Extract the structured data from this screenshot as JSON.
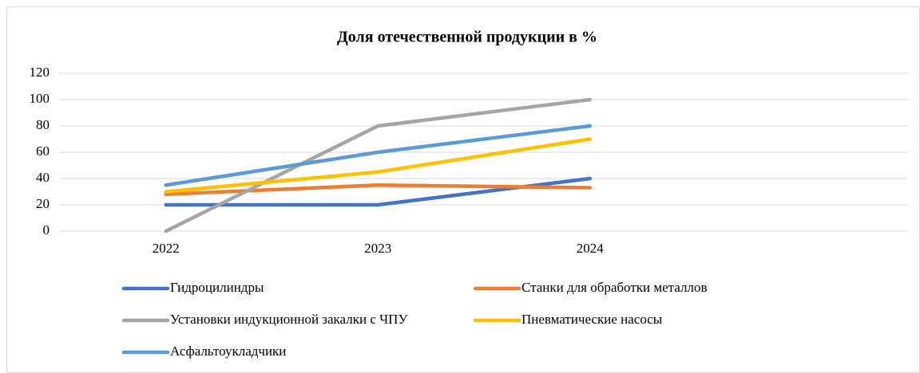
{
  "chart_data": {
    "type": "line",
    "title": "Доля отечественной продукции в %",
    "categories": [
      "2022",
      "2023",
      "2024",
      null
    ],
    "series": [
      {
        "name": "Гидроцилиндры",
        "color": "#4472c4",
        "values": [
          20,
          20,
          40,
          null
        ]
      },
      {
        "name": "Станки для обработки металлов",
        "color": "#ed7d31",
        "values": [
          28,
          35,
          33,
          null
        ]
      },
      {
        "name": "Установки индукционной закалки с ЧПУ",
        "color": "#a5a5a5",
        "values": [
          0,
          80,
          100,
          null
        ]
      },
      {
        "name": "Пневматические насосы",
        "color": "#ffc000",
        "values": [
          30,
          45,
          70,
          null
        ]
      },
      {
        "name": "Асфальтоукладчики",
        "color": "#5b9bd5",
        "values": [
          35,
          60,
          80,
          null
        ]
      }
    ],
    "ylim": [
      0,
      120
    ],
    "yticks": [
      0,
      20,
      40,
      60,
      80,
      100,
      120
    ],
    "grid": true,
    "legend": "bottom"
  }
}
